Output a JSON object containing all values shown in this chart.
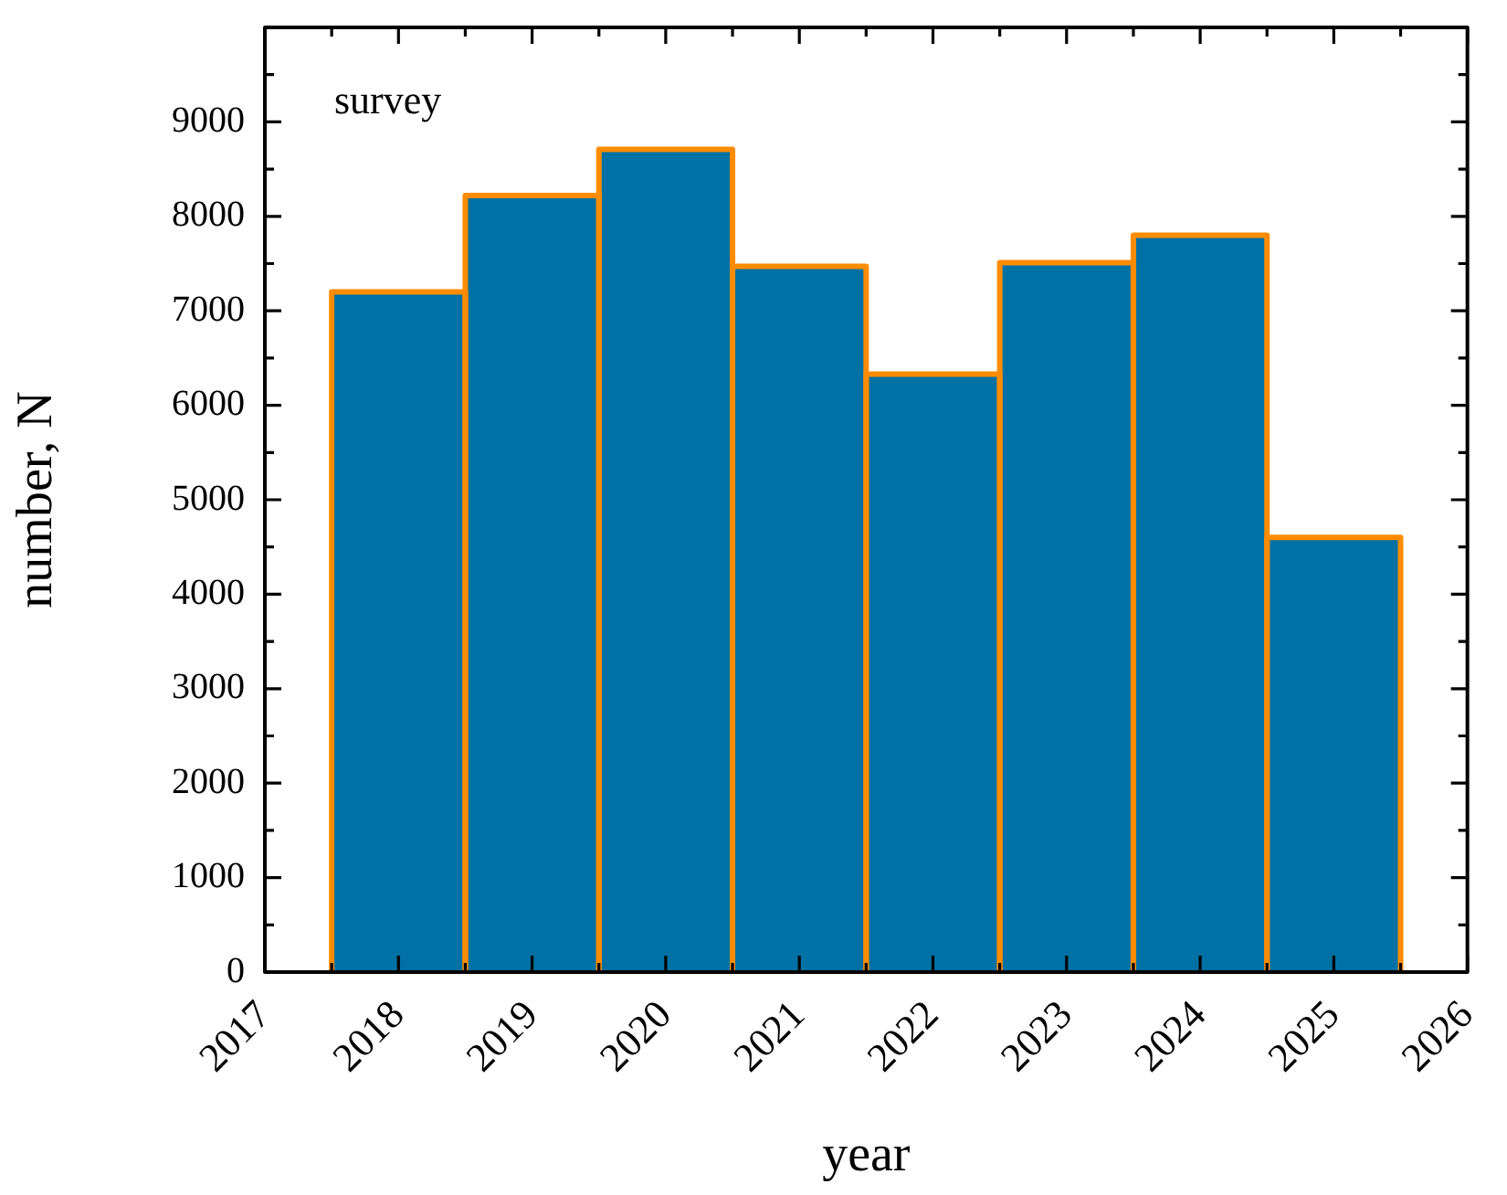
{
  "chart_data": {
    "type": "histogram",
    "xlabel": "year",
    "ylabel": "number, N",
    "annotations": [
      "survey"
    ],
    "bins": [
      2017.5,
      2018.5,
      2019.5,
      2020.5,
      2021.5,
      2022.5,
      2023.5,
      2024.5,
      2025.5
    ],
    "values": [
      7200,
      8220,
      8710,
      7470,
      6330,
      7510,
      7800,
      4600
    ],
    "color": "#0071a4",
    "xlim": [
      2017,
      2026
    ],
    "xticks": [
      2017,
      {
        "value": 2017.5,
        "label": null
      },
      2018,
      {
        "value": 2018.5,
        "label": null
      },
      2019,
      {
        "value": 2019.5,
        "label": null
      },
      2020,
      {
        "value": 2020.5,
        "label": null
      },
      2021,
      {
        "value": 2021.5,
        "label": null
      },
      2022,
      {
        "value": 2022.5,
        "label": null
      },
      2023,
      {
        "value": 2023.5,
        "label": null
      },
      2024,
      {
        "value": 2024.5,
        "label": null
      },
      2025,
      {
        "value": 2025.5,
        "label": null
      },
      2026
    ],
    "ylim": [
      0,
      10000
    ],
    "yticks": [
      0,
      {
        "value": 500,
        "label": null
      },
      1000,
      {
        "value": 1500,
        "label": null
      },
      2000,
      {
        "value": 2500,
        "label": null
      },
      3000,
      {
        "value": 3500,
        "label": null
      },
      4000,
      {
        "value": 4500,
        "label": null
      },
      5000,
      {
        "value": 5500,
        "label": null
      },
      6000,
      {
        "value": 6500,
        "label": null
      },
      7000,
      {
        "value": 7500,
        "label": null
      },
      8000,
      {
        "value": 8500,
        "label": null
      },
      9000,
      {
        "value": 9500,
        "label": null
      },
      {
        "value": 10000,
        "label": null
      }
    ],
    "grid": false,
    "legend": false
  }
}
